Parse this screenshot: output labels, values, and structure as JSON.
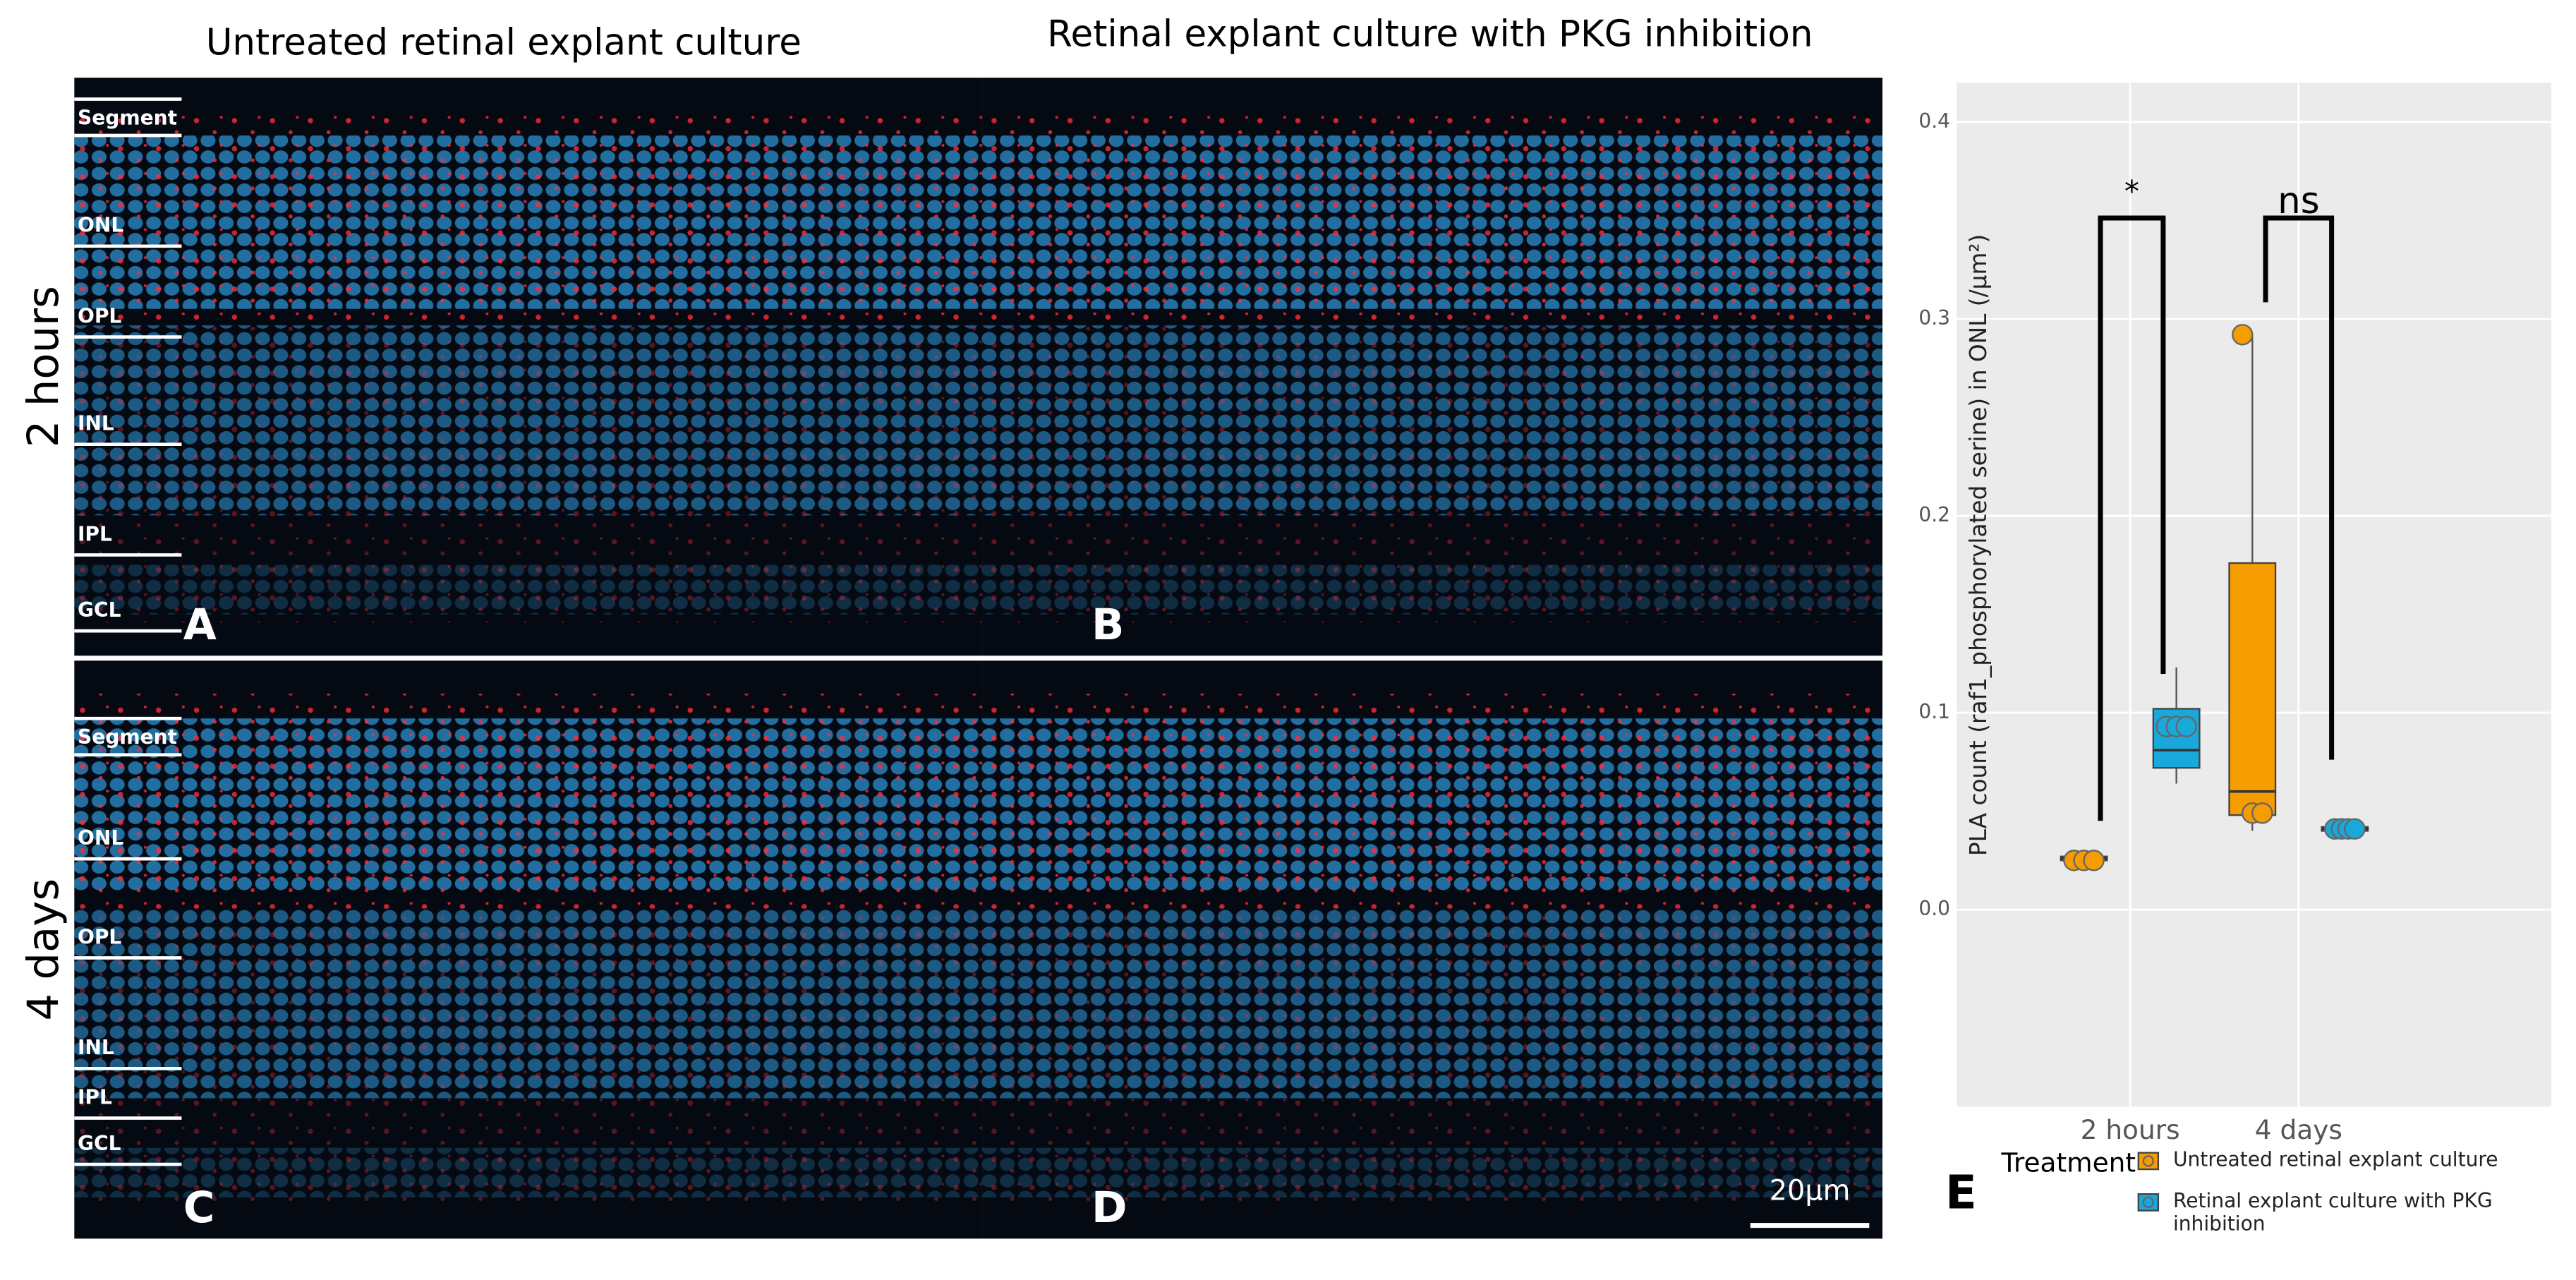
{
  "figure": {
    "col_titles": [
      "Untreated retinal explant culture",
      "Retinal explant culture with PKG inhibition"
    ],
    "row_labels": [
      "2 hours",
      "4 days"
    ],
    "layers": [
      "Segment",
      "ONL",
      "OPL",
      "INL",
      "IPL",
      "GCL"
    ],
    "panel_letters": [
      "A",
      "B",
      "C",
      "D",
      "E"
    ],
    "scale_bar": "20µm"
  },
  "chart_data": {
    "type": "box",
    "y_label": "PLA count (raf1_phosphorylated serine) in ONL (/µm²)",
    "categories": [
      "2 hours",
      "4 days"
    ],
    "legend_title": "Treatment",
    "legend": "bottom",
    "grid": true,
    "ylim": [
      -0.1,
      0.42
    ],
    "yticks": [
      {
        "value": 0,
        "label": "0.0"
      },
      0.1,
      0.2,
      0.3,
      0.4
    ],
    "series": [
      {
        "name": "Untreated retinal explant culture",
        "color": "#f59c00",
        "boxes": [
          {
            "min": 0.024,
            "q1": 0.025,
            "median": 0.026,
            "q3": 0.027,
            "max": 0.028,
            "points": [
              0.025,
              0.025,
              0.025
            ]
          },
          {
            "min": 0.04,
            "q1": 0.048,
            "median": 0.06,
            "q3": 0.176,
            "max": 0.292,
            "points": [
              0.292,
              0.049,
              0.049
            ]
          }
        ]
      },
      {
        "name": "Retinal explant culture with PKG inhibition",
        "color": "#1aa7d9",
        "boxes": [
          {
            "min": 0.064,
            "q1": 0.072,
            "median": 0.081,
            "q3": 0.102,
            "max": 0.123,
            "points": [
              0.093,
              0.093,
              0.093
            ]
          },
          {
            "min": 0.039,
            "q1": 0.04,
            "median": 0.041,
            "q3": 0.042,
            "max": 0.043,
            "points": [
              0.041,
              0.041,
              0.041,
              0.041
            ]
          }
        ]
      }
    ],
    "annotations": [
      "*",
      "ns"
    ]
  }
}
